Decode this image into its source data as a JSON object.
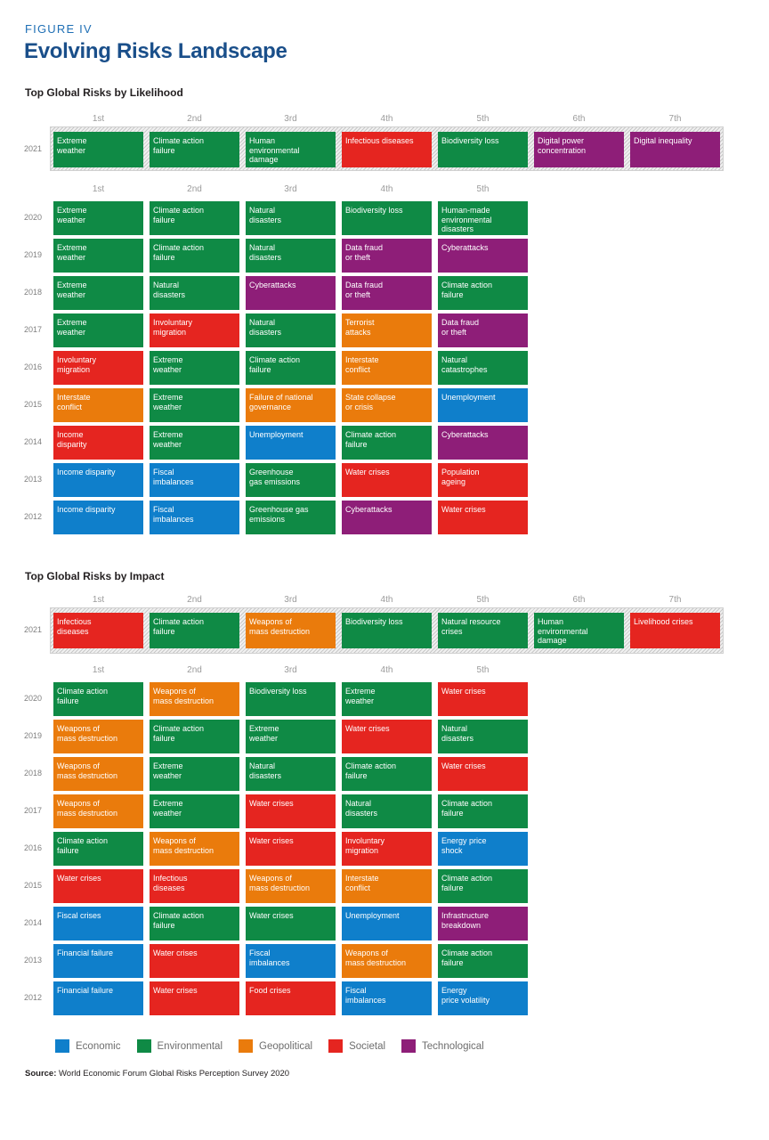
{
  "header": {
    "figure_label": "FIGURE IV",
    "title": "Evolving Risks Landscape"
  },
  "colors": {
    "economic": "#0f7fcb",
    "environmental": "#0f8a45",
    "geopolitical": "#ea7b0c",
    "societal": "#e52520",
    "technological": "#8e1e78"
  },
  "chart_data": [
    {
      "type": "table",
      "title": "Top Global Risks by Likelihood",
      "rank_labels_2021": [
        "1st",
        "2nd",
        "3rd",
        "4th",
        "5th",
        "6th",
        "7th"
      ],
      "rank_labels": [
        "1st",
        "2nd",
        "3rd",
        "4th",
        "5th"
      ],
      "rows": [
        {
          "year": "2021",
          "cells": [
            {
              "label": "Extreme\nweather",
              "category": "environmental"
            },
            {
              "label": "Climate action\nfailure",
              "category": "environmental"
            },
            {
              "label": "Human\nenvironmental\ndamage",
              "category": "environmental"
            },
            {
              "label": "Infectious diseases",
              "category": "societal"
            },
            {
              "label": "Biodiversity loss",
              "category": "environmental"
            },
            {
              "label": "Digital power\nconcentration",
              "category": "technological"
            },
            {
              "label": "Digital inequality",
              "category": "technological"
            }
          ]
        },
        {
          "year": "2020",
          "cells": [
            {
              "label": "Extreme\nweather",
              "category": "environmental"
            },
            {
              "label": "Climate action\nfailure",
              "category": "environmental"
            },
            {
              "label": "Natural\ndisasters",
              "category": "environmental"
            },
            {
              "label": "Biodiversity loss",
              "category": "environmental"
            },
            {
              "label": "Human-made\nenvironmental\ndisasters",
              "category": "environmental"
            }
          ]
        },
        {
          "year": "2019",
          "cells": [
            {
              "label": "Extreme\nweather",
              "category": "environmental"
            },
            {
              "label": "Climate action\nfailure",
              "category": "environmental"
            },
            {
              "label": "Natural\ndisasters",
              "category": "environmental"
            },
            {
              "label": "Data fraud\nor theft",
              "category": "technological"
            },
            {
              "label": "Cyberattacks",
              "category": "technological"
            }
          ]
        },
        {
          "year": "2018",
          "cells": [
            {
              "label": "Extreme\nweather",
              "category": "environmental"
            },
            {
              "label": "Natural\ndisasters",
              "category": "environmental"
            },
            {
              "label": "Cyberattacks",
              "category": "technological"
            },
            {
              "label": "Data fraud\nor theft",
              "category": "technological"
            },
            {
              "label": "Climate action\nfailure",
              "category": "environmental"
            }
          ]
        },
        {
          "year": "2017",
          "cells": [
            {
              "label": "Extreme\nweather",
              "category": "environmental"
            },
            {
              "label": "Involuntary\nmigration",
              "category": "societal"
            },
            {
              "label": "Natural\ndisasters",
              "category": "environmental"
            },
            {
              "label": "Terrorist\nattacks",
              "category": "geopolitical"
            },
            {
              "label": "Data fraud\nor theft",
              "category": "technological"
            }
          ]
        },
        {
          "year": "2016",
          "cells": [
            {
              "label": "Involuntary\nmigration",
              "category": "societal"
            },
            {
              "label": "Extreme\nweather",
              "category": "environmental"
            },
            {
              "label": "Climate action\nfailure",
              "category": "environmental"
            },
            {
              "label": "Interstate\nconflict",
              "category": "geopolitical"
            },
            {
              "label": "Natural\ncatastrophes",
              "category": "environmental"
            }
          ]
        },
        {
          "year": "2015",
          "cells": [
            {
              "label": "Interstate\nconflict",
              "category": "geopolitical"
            },
            {
              "label": "Extreme\nweather",
              "category": "environmental"
            },
            {
              "label": "Failure of national\ngovernance",
              "category": "geopolitical"
            },
            {
              "label": "State collapse\nor crisis",
              "category": "geopolitical"
            },
            {
              "label": "Unemployment",
              "category": "economic"
            }
          ]
        },
        {
          "year": "2014",
          "cells": [
            {
              "label": "Income\ndisparity",
              "category": "societal"
            },
            {
              "label": "Extreme\nweather",
              "category": "environmental"
            },
            {
              "label": "Unemployment",
              "category": "economic"
            },
            {
              "label": "Climate action\nfailure",
              "category": "environmental"
            },
            {
              "label": "Cyberattacks",
              "category": "technological"
            }
          ]
        },
        {
          "year": "2013",
          "cells": [
            {
              "label": "Income disparity",
              "category": "economic"
            },
            {
              "label": "Fiscal\nimbalances",
              "category": "economic"
            },
            {
              "label": "Greenhouse\ngas emissions",
              "category": "environmental"
            },
            {
              "label": "Water crises",
              "category": "societal"
            },
            {
              "label": "Population\nageing",
              "category": "societal"
            }
          ]
        },
        {
          "year": "2012",
          "cells": [
            {
              "label": "Income disparity",
              "category": "economic"
            },
            {
              "label": "Fiscal\nimbalances",
              "category": "economic"
            },
            {
              "label": "Greenhouse gas\nemissions",
              "category": "environmental"
            },
            {
              "label": "Cyberattacks",
              "category": "technological"
            },
            {
              "label": "Water crises",
              "category": "societal"
            }
          ]
        }
      ]
    },
    {
      "type": "table",
      "title": "Top Global Risks by Impact",
      "rank_labels_2021": [
        "1st",
        "2nd",
        "3rd",
        "4th",
        "5th",
        "6th",
        "7th"
      ],
      "rank_labels": [
        "1st",
        "2nd",
        "3rd",
        "4th",
        "5th"
      ],
      "rows": [
        {
          "year": "2021",
          "cells": [
            {
              "label": "Infectious\ndiseases",
              "category": "societal"
            },
            {
              "label": "Climate action\nfailure",
              "category": "environmental"
            },
            {
              "label": "Weapons of\nmass destruction",
              "category": "geopolitical"
            },
            {
              "label": "Biodiversity loss",
              "category": "environmental"
            },
            {
              "label": "Natural resource\ncrises",
              "category": "environmental"
            },
            {
              "label": "Human\nenvironmental\ndamage",
              "category": "environmental"
            },
            {
              "label": "Livelihood crises",
              "category": "societal"
            }
          ]
        },
        {
          "year": "2020",
          "cells": [
            {
              "label": "Climate action\nfailure",
              "category": "environmental"
            },
            {
              "label": "Weapons of\nmass destruction",
              "category": "geopolitical"
            },
            {
              "label": "Biodiversity loss",
              "category": "environmental"
            },
            {
              "label": "Extreme\nweather",
              "category": "environmental"
            },
            {
              "label": "Water crises",
              "category": "societal"
            }
          ]
        },
        {
          "year": "2019",
          "cells": [
            {
              "label": "Weapons of\nmass destruction",
              "category": "geopolitical"
            },
            {
              "label": "Climate action\nfailure",
              "category": "environmental"
            },
            {
              "label": "Extreme\nweather",
              "category": "environmental"
            },
            {
              "label": "Water crises",
              "category": "societal"
            },
            {
              "label": "Natural\ndisasters",
              "category": "environmental"
            }
          ]
        },
        {
          "year": "2018",
          "cells": [
            {
              "label": "Weapons of\nmass destruction",
              "category": "geopolitical"
            },
            {
              "label": "Extreme\nweather",
              "category": "environmental"
            },
            {
              "label": "Natural\ndisasters",
              "category": "environmental"
            },
            {
              "label": "Climate action\nfailure",
              "category": "environmental"
            },
            {
              "label": "Water crises",
              "category": "societal"
            }
          ]
        },
        {
          "year": "2017",
          "cells": [
            {
              "label": "Weapons of\nmass destruction",
              "category": "geopolitical"
            },
            {
              "label": "Extreme\nweather",
              "category": "environmental"
            },
            {
              "label": "Water crises",
              "category": "societal"
            },
            {
              "label": "Natural\ndisasters",
              "category": "environmental"
            },
            {
              "label": "Climate action\nfailure",
              "category": "environmental"
            }
          ]
        },
        {
          "year": "2016",
          "cells": [
            {
              "label": "Climate action\nfailure",
              "category": "environmental"
            },
            {
              "label": "Weapons of\nmass destruction",
              "category": "geopolitical"
            },
            {
              "label": "Water crises",
              "category": "societal"
            },
            {
              "label": "Involuntary\nmigration",
              "category": "societal"
            },
            {
              "label": "Energy price\nshock",
              "category": "economic"
            }
          ]
        },
        {
          "year": "2015",
          "cells": [
            {
              "label": "Water crises",
              "category": "societal"
            },
            {
              "label": "Infectious\ndiseases",
              "category": "societal"
            },
            {
              "label": "Weapons of\nmass destruction",
              "category": "geopolitical"
            },
            {
              "label": "Interstate\nconflict",
              "category": "geopolitical"
            },
            {
              "label": "Climate action\nfailure",
              "category": "environmental"
            }
          ]
        },
        {
          "year": "2014",
          "cells": [
            {
              "label": "Fiscal crises",
              "category": "economic"
            },
            {
              "label": "Climate action\nfailure",
              "category": "environmental"
            },
            {
              "label": "Water crises",
              "category": "environmental"
            },
            {
              "label": "Unemployment",
              "category": "economic"
            },
            {
              "label": "Infrastructure\nbreakdown",
              "category": "technological"
            }
          ]
        },
        {
          "year": "2013",
          "cells": [
            {
              "label": "Financial failure",
              "category": "economic"
            },
            {
              "label": "Water crises",
              "category": "societal"
            },
            {
              "label": "Fiscal\nimbalances",
              "category": "economic"
            },
            {
              "label": "Weapons of\nmass destruction",
              "category": "geopolitical"
            },
            {
              "label": "Climate action\nfailure",
              "category": "environmental"
            }
          ]
        },
        {
          "year": "2012",
          "cells": [
            {
              "label": "Financial failure",
              "category": "economic"
            },
            {
              "label": "Water crises",
              "category": "societal"
            },
            {
              "label": "Food crises",
              "category": "societal"
            },
            {
              "label": "Fiscal\nimbalances",
              "category": "economic"
            },
            {
              "label": "Energy\nprice volatility",
              "category": "economic"
            }
          ]
        }
      ]
    }
  ],
  "legend": [
    {
      "label": "Economic",
      "category": "economic"
    },
    {
      "label": "Environmental",
      "category": "environmental"
    },
    {
      "label": "Geopolitical",
      "category": "geopolitical"
    },
    {
      "label": "Societal",
      "category": "societal"
    },
    {
      "label": "Technological",
      "category": "technological"
    }
  ],
  "source": {
    "label": "Source:",
    "text": " World Economic Forum Global Risks Perception Survey 2020"
  }
}
